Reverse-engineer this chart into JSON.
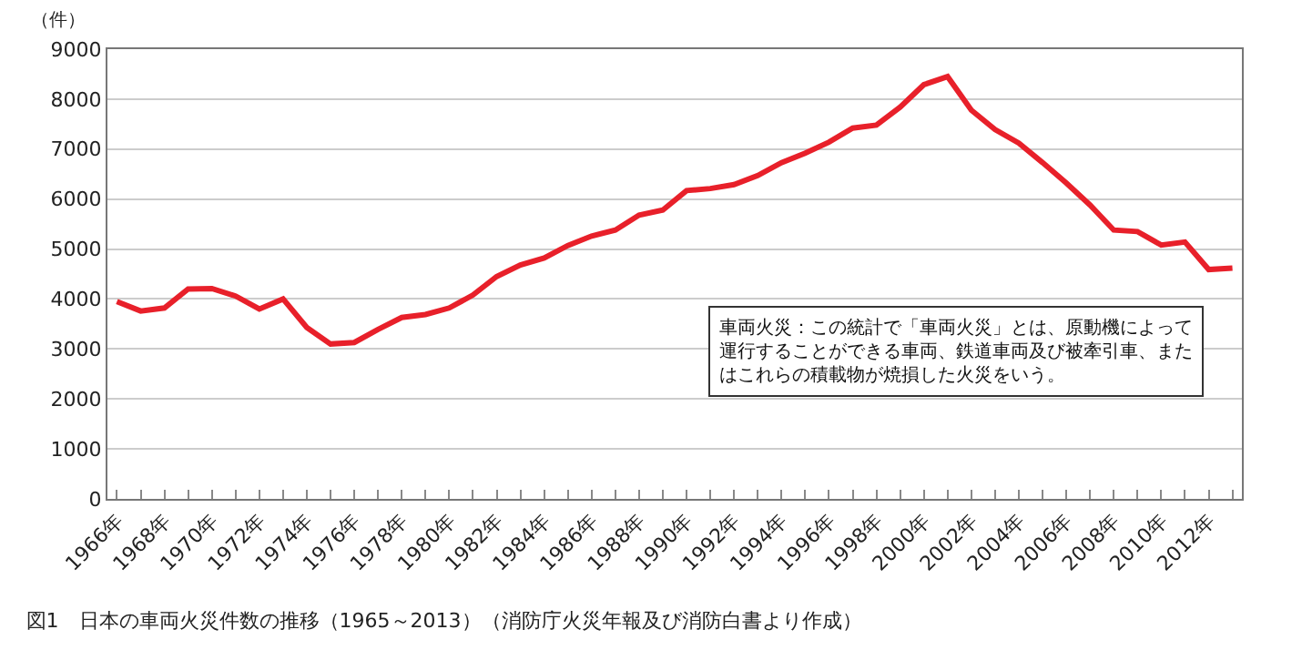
{
  "chart_data": {
    "type": "line",
    "title": "図1　日本の車両火災件数の推移（1965～2013）（消防庁火災年報及び消防白書より作成）",
    "ylabel": "（件）",
    "x": [
      1966,
      1967,
      1968,
      1969,
      1970,
      1971,
      1972,
      1973,
      1974,
      1975,
      1976,
      1977,
      1978,
      1979,
      1980,
      1981,
      1982,
      1983,
      1984,
      1985,
      1986,
      1987,
      1988,
      1989,
      1990,
      1991,
      1992,
      1993,
      1994,
      1995,
      1996,
      1997,
      1998,
      1999,
      2000,
      2001,
      2002,
      2003,
      2004,
      2005,
      2006,
      2007,
      2008,
      2009,
      2010,
      2011,
      2012,
      2013
    ],
    "series": [
      {
        "color": "#e8202a",
        "values": [
          3950,
          3760,
          3820,
          4200,
          4210,
          4060,
          3800,
          4000,
          3430,
          3100,
          3130,
          3390,
          3630,
          3690,
          3820,
          4080,
          4450,
          4680,
          4820,
          5070,
          5260,
          5380,
          5680,
          5780,
          6170,
          6210,
          6290,
          6470,
          6730,
          6920,
          7140,
          7420,
          7480,
          7840,
          8290,
          8450,
          7780,
          7390,
          7120,
          6730,
          6320,
          5880,
          5380,
          5350,
          5080,
          5140,
          4590,
          4620
        ]
      }
    ],
    "xlim": [
      1965.6,
      2013.4
    ],
    "xticks": [
      {
        "value": 1966,
        "label": "1966年"
      },
      {
        "value": 1967,
        "label": null
      },
      {
        "value": 1968,
        "label": "1968年"
      },
      {
        "value": 1969,
        "label": null
      },
      {
        "value": 1970,
        "label": "1970年"
      },
      {
        "value": 1971,
        "label": null
      },
      {
        "value": 1972,
        "label": "1972年"
      },
      {
        "value": 1973,
        "label": null
      },
      {
        "value": 1974,
        "label": "1974年"
      },
      {
        "value": 1975,
        "label": null
      },
      {
        "value": 1976,
        "label": "1976年"
      },
      {
        "value": 1977,
        "label": null
      },
      {
        "value": 1978,
        "label": "1978年"
      },
      {
        "value": 1979,
        "label": null
      },
      {
        "value": 1980,
        "label": "1980年"
      },
      {
        "value": 1981,
        "label": null
      },
      {
        "value": 1982,
        "label": "1982年"
      },
      {
        "value": 1983,
        "label": null
      },
      {
        "value": 1984,
        "label": "1984年"
      },
      {
        "value": 1985,
        "label": null
      },
      {
        "value": 1986,
        "label": "1986年"
      },
      {
        "value": 1987,
        "label": null
      },
      {
        "value": 1988,
        "label": "1988年"
      },
      {
        "value": 1989,
        "label": null
      },
      {
        "value": 1990,
        "label": "1990年"
      },
      {
        "value": 1991,
        "label": null
      },
      {
        "value": 1992,
        "label": "1992年"
      },
      {
        "value": 1993,
        "label": null
      },
      {
        "value": 1994,
        "label": "1994年"
      },
      {
        "value": 1995,
        "label": null
      },
      {
        "value": 1996,
        "label": "1996年"
      },
      {
        "value": 1997,
        "label": null
      },
      {
        "value": 1998,
        "label": "1998年"
      },
      {
        "value": 1999,
        "label": null
      },
      {
        "value": 2000,
        "label": "2000年"
      },
      {
        "value": 2001,
        "label": null
      },
      {
        "value": 2002,
        "label": "2002年"
      },
      {
        "value": 2003,
        "label": null
      },
      {
        "value": 2004,
        "label": "2004年"
      },
      {
        "value": 2005,
        "label": null
      },
      {
        "value": 2006,
        "label": "2006年"
      },
      {
        "value": 2007,
        "label": null
      },
      {
        "value": 2008,
        "label": "2008年"
      },
      {
        "value": 2009,
        "label": null
      },
      {
        "value": 2010,
        "label": "2010年"
      },
      {
        "value": 2011,
        "label": null
      },
      {
        "value": 2012,
        "label": "2012年"
      },
      {
        "value": 2013,
        "label": null
      }
    ],
    "ylim": [
      0,
      9000
    ],
    "yticks": [
      0,
      1000,
      2000,
      3000,
      4000,
      5000,
      6000,
      7000,
      8000,
      9000
    ],
    "grid": "y",
    "marker": "none",
    "line_style": "solid",
    "annotations": [
      "車両火災：この統計で「車両火災」とは、原動機によって運行することができる車両、鉄道車両及び被牽引車、またはこれらの積載物が焼損した火災をいう。"
    ]
  }
}
